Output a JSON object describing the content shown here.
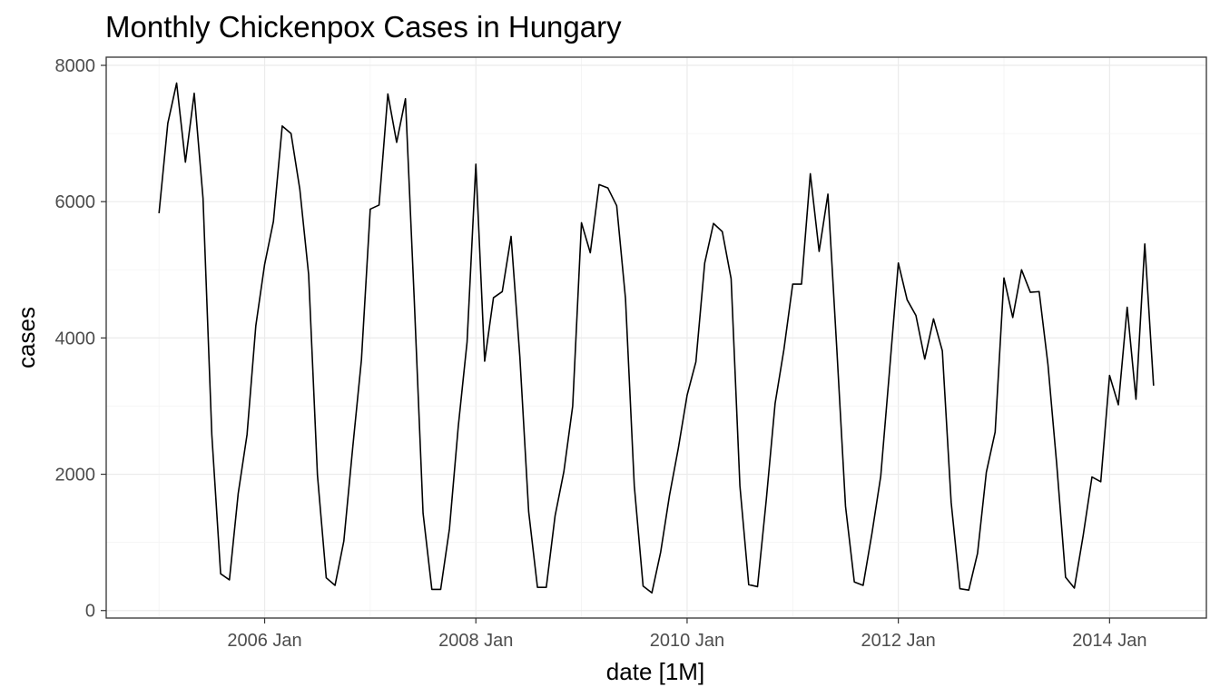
{
  "chart_data": {
    "type": "line",
    "title": "Monthly Chickenpox Cases in Hungary",
    "xlabel": "date [1M]",
    "ylabel": "cases",
    "x_start": "2005 Jan",
    "x_frequency": "1M",
    "xlim": [
      "2004 Jul",
      "2014 Dec"
    ],
    "ylim": [
      0,
      8000
    ],
    "x_ticks": [
      {
        "label": "2006 Jan"
      },
      {
        "label": "2008 Jan"
      },
      {
        "label": "2010 Jan"
      },
      {
        "label": "2012 Jan"
      },
      {
        "label": "2014 Jan"
      }
    ],
    "y_ticks": [
      {
        "label": "0",
        "value": 0
      },
      {
        "label": "2000",
        "value": 2000
      },
      {
        "label": "4000",
        "value": 4000
      },
      {
        "label": "6000",
        "value": 6000
      },
      {
        "label": "8000",
        "value": 8000
      }
    ],
    "grid": true,
    "series": [
      {
        "values": [
          5830,
          7150,
          7740,
          6580,
          7590,
          6050,
          2580,
          540,
          450,
          1720,
          2580,
          4180,
          5080,
          5710,
          7110,
          7000,
          6180,
          4930,
          1990,
          480,
          370,
          1020,
          2380,
          3680,
          5890,
          5950,
          7580,
          6870,
          7510,
          4560,
          1430,
          310,
          310,
          1200,
          2700,
          3940,
          6550,
          3660,
          4590,
          4680,
          5490,
          3720,
          1450,
          340,
          340,
          1390,
          2040,
          3000,
          5690,
          5250,
          6250,
          6200,
          5940,
          4580,
          1830,
          360,
          260,
          860,
          1690,
          2380,
          3160,
          3650,
          5100,
          5680,
          5560,
          4870,
          1830,
          380,
          350,
          1630,
          3040,
          3830,
          4790,
          4790,
          6410,
          5270,
          6110,
          3860,
          1530,
          420,
          370,
          1130,
          1970,
          3520,
          5100,
          4560,
          4330,
          3690,
          4280,
          3810,
          1590,
          320,
          300,
          840,
          2030,
          2620,
          4880,
          4300,
          5000,
          4670,
          4680,
          3610,
          2140,
          490,
          330,
          1100,
          1960,
          1890,
          3450,
          3020,
          4450,
          3100,
          5380,
          3300
        ]
      }
    ]
  }
}
